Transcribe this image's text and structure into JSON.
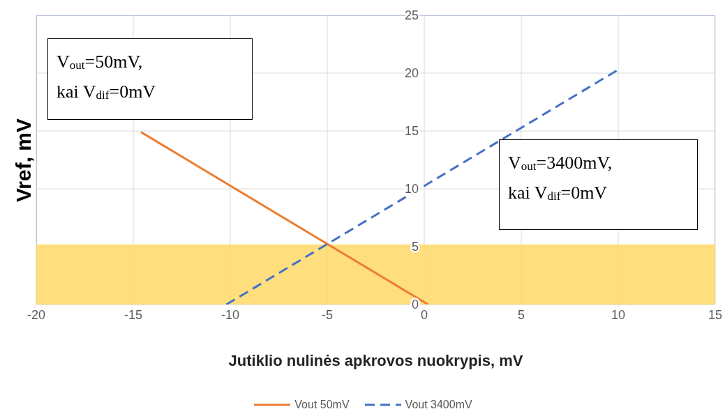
{
  "chart_data": {
    "type": "line",
    "xlabel": "Jutiklio nulinės apkrovos nuokrypis, mV",
    "ylabel": "Vref, mV",
    "series": [
      {
        "name": "Vout 50mV",
        "color": "#ed7d31",
        "x": [
          -14.6,
          0.2
        ],
        "values": [
          14.9,
          0
        ],
        "line_style": "solid"
      },
      {
        "name": "Vout 3400mV",
        "color": "#4472c4",
        "x": [
          -10.2,
          10
        ],
        "values": [
          0,
          20.3
        ],
        "line_style": "dashed"
      }
    ],
    "xlim": [
      -20,
      15
    ],
    "xticks": [
      -20,
      -15,
      -10,
      -5,
      0,
      5,
      10,
      15
    ],
    "ylim": [
      0,
      25
    ],
    "yticks": [
      0,
      5,
      10,
      15,
      20,
      25
    ],
    "grid": true,
    "legend": "bottom",
    "marker": "none",
    "bands": [
      {
        "axis": "y",
        "from": 0,
        "to": 5.2,
        "color": "#ffd966"
      }
    ],
    "annotations": [
      "V$_{out}$=50mV,\nkai V$_{dif}$=0mV",
      "V$_{out}$=3400mV,\nkai V$_{dif}$=0mV"
    ]
  }
}
